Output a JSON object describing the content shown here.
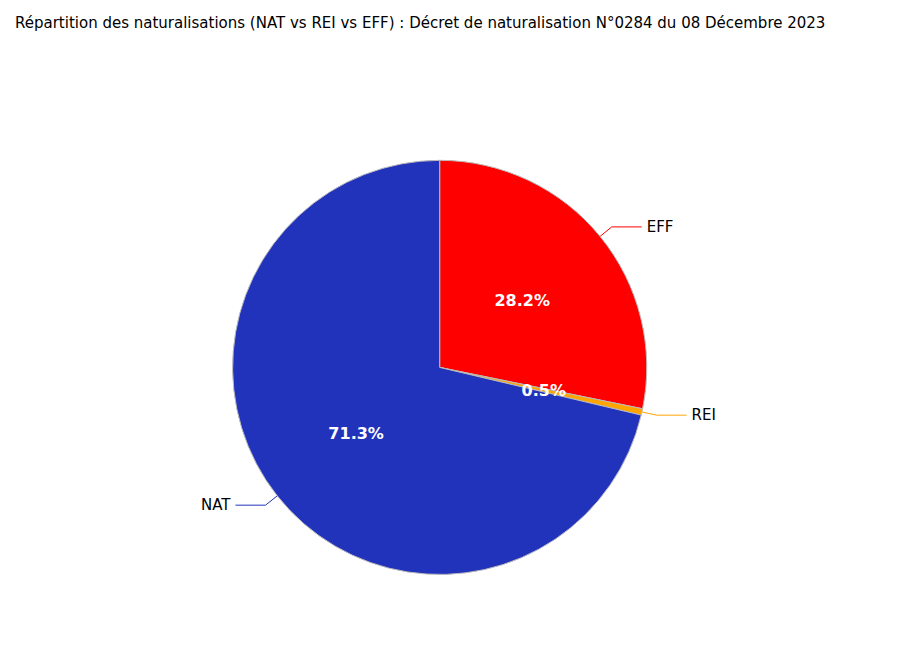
{
  "chart_data": {
    "type": "pie",
    "title": "Répartition des naturalisations (NAT vs REI vs EFF) : Décret de naturalisation N°0284 du 08 Décembre 2023",
    "categories": [
      "EFF",
      "REI",
      "NAT"
    ],
    "values": [
      28.2,
      0.5,
      71.3
    ],
    "value_labels": [
      "28.2%",
      "0.5%",
      "71.3%"
    ],
    "colors": [
      "#ff0000",
      "#ffa500",
      "#2233bb"
    ],
    "data_labels": true
  }
}
